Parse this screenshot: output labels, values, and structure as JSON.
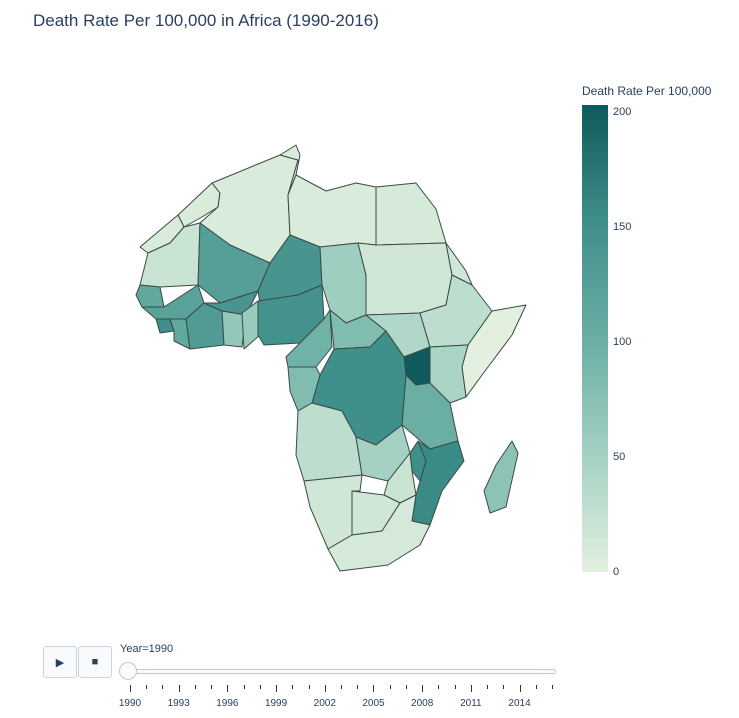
{
  "title": "Death Rate Per 100,000 in Africa (1990-2016)",
  "colorbar": {
    "title": "Death Rate Per 100,000",
    "ticks": [
      "200",
      "150",
      "100",
      "50",
      "0"
    ],
    "range": [
      0,
      200
    ],
    "colors": [
      "#e3f0e0",
      "#a4d1c3",
      "#6aaea4",
      "#3f8f8a",
      "#0f5a5c"
    ]
  },
  "controls": {
    "play_icon": "play-icon",
    "stop_icon": "stop-icon"
  },
  "slider": {
    "label": "Year=1990",
    "current_year": 1990,
    "start_year": 1990,
    "end_year": 2016,
    "tick_labels": [
      "1990",
      "1993",
      "1996",
      "1999",
      "2002",
      "2005",
      "2008",
      "2011",
      "2014"
    ]
  },
  "chart_data": {
    "type": "choropleth",
    "title": "Death Rate Per 100,000 in Africa (1990-2016)",
    "frame": "Year=1990",
    "value_label": "Death Rate Per 100,000",
    "range": [
      0,
      200
    ],
    "regions": [
      {
        "id": "morocco",
        "value": 8
      },
      {
        "id": "algeria",
        "value": 8
      },
      {
        "id": "tunisia",
        "value": 8
      },
      {
        "id": "libya",
        "value": 8
      },
      {
        "id": "egypt",
        "value": 10
      },
      {
        "id": "western-sahara",
        "value": 8
      },
      {
        "id": "mauritania",
        "value": 20
      },
      {
        "id": "mali",
        "value": 125
      },
      {
        "id": "niger",
        "value": 140
      },
      {
        "id": "chad",
        "value": 55
      },
      {
        "id": "sudan",
        "value": 15
      },
      {
        "id": "eritrea",
        "value": 15
      },
      {
        "id": "senegal",
        "value": 110
      },
      {
        "id": "guinea",
        "value": 120
      },
      {
        "id": "sierra-leone",
        "value": 150
      },
      {
        "id": "liberia",
        "value": 110
      },
      {
        "id": "cote-divoire",
        "value": 130
      },
      {
        "id": "burkina-faso",
        "value": 140
      },
      {
        "id": "ghana",
        "value": 65
      },
      {
        "id": "togo-benin",
        "value": 60
      },
      {
        "id": "nigeria",
        "value": 145
      },
      {
        "id": "cameroon",
        "value": 95
      },
      {
        "id": "car",
        "value": 80
      },
      {
        "id": "south-sudan",
        "value": 40
      },
      {
        "id": "ethiopia",
        "value": 30
      },
      {
        "id": "somalia",
        "value": 0
      },
      {
        "id": "kenya",
        "value": 45
      },
      {
        "id": "uganda",
        "value": 200
      },
      {
        "id": "drc",
        "value": 150
      },
      {
        "id": "congo-gabon",
        "value": 80
      },
      {
        "id": "tanzania",
        "value": 100
      },
      {
        "id": "angola",
        "value": 30
      },
      {
        "id": "zambia",
        "value": 50
      },
      {
        "id": "malawi",
        "value": 150
      },
      {
        "id": "mozambique",
        "value": 155
      },
      {
        "id": "zimbabwe",
        "value": 20
      },
      {
        "id": "namibia",
        "value": 15
      },
      {
        "id": "botswana",
        "value": 15
      },
      {
        "id": "south-africa",
        "value": 12
      },
      {
        "id": "madagascar",
        "value": 70
      }
    ]
  }
}
